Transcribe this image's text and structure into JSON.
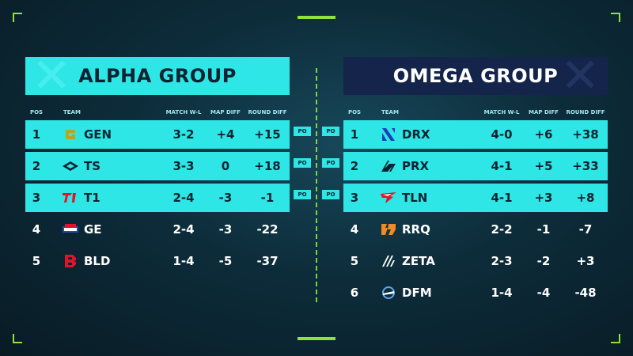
{
  "alpha": {
    "title": "ALPHA GROUP",
    "columns": {
      "pos": "POS",
      "team": "TEAM",
      "match": "MATCH W-L",
      "map": "MAP DIFF",
      "round": "ROUND DIFF"
    },
    "rows": [
      {
        "pos": "1",
        "team": "GEN",
        "match": "3-2",
        "map": "+4",
        "round": "+15",
        "logo": "gen-logo"
      },
      {
        "pos": "2",
        "team": "TS",
        "match": "3-3",
        "map": "0",
        "round": "+18",
        "logo": "ts-logo"
      },
      {
        "pos": "3",
        "team": "T1",
        "match": "2-4",
        "map": "-3",
        "round": "-1",
        "logo": "t1-logo"
      },
      {
        "pos": "4",
        "team": "GE",
        "match": "2-4",
        "map": "-3",
        "round": "-22",
        "logo": "ge-logo"
      },
      {
        "pos": "5",
        "team": "BLD",
        "match": "1-4",
        "map": "-5",
        "round": "-37",
        "logo": "bld-logo"
      }
    ]
  },
  "omega": {
    "title": "OMEGA GROUP",
    "columns": {
      "pos": "POS",
      "team": "TEAM",
      "match": "MATCH W-L",
      "map": "MAP DIFF",
      "round": "ROUND DIFF"
    },
    "rows": [
      {
        "pos": "1",
        "team": "DRX",
        "match": "4-0",
        "map": "+6",
        "round": "+38",
        "logo": "drx-logo"
      },
      {
        "pos": "2",
        "team": "PRX",
        "match": "4-1",
        "map": "+5",
        "round": "+33",
        "logo": "prx-logo"
      },
      {
        "pos": "3",
        "team": "TLN",
        "match": "4-1",
        "map": "+3",
        "round": "+8",
        "logo": "tln-logo"
      },
      {
        "pos": "4",
        "team": "RRQ",
        "match": "2-2",
        "map": "-1",
        "round": "-7",
        "logo": "rrq-logo"
      },
      {
        "pos": "5",
        "team": "ZETA",
        "match": "2-3",
        "map": "-2",
        "round": "+3",
        "logo": "zeta-logo"
      },
      {
        "pos": "6",
        "team": "DFM",
        "match": "1-4",
        "map": "-4",
        "round": "-48",
        "logo": "dfm-logo"
      }
    ]
  },
  "badge": "PO",
  "colors": {
    "accent": "#2ee6e6",
    "navy": "#14244a",
    "green": "#8fe23c"
  }
}
